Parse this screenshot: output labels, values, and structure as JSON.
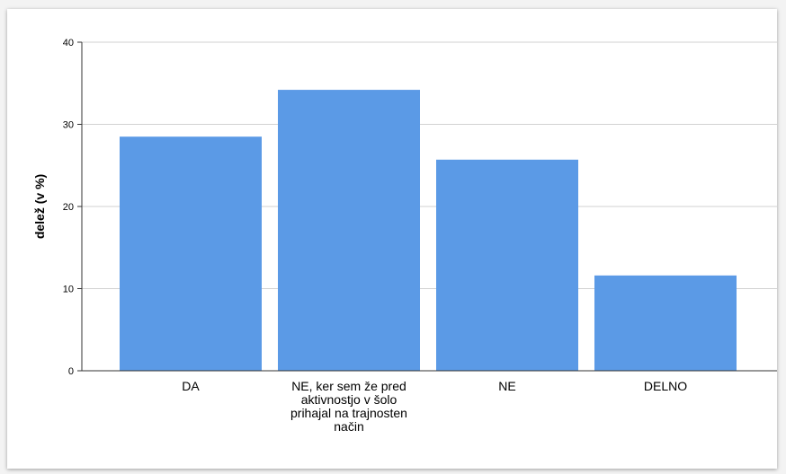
{
  "chart_data": {
    "type": "bar",
    "categories": [
      [
        "DA"
      ],
      [
        "NE, ker sem že pred",
        "aktivnostjo v šolo",
        "prihajal na trajnosten",
        "način"
      ],
      [
        "NE"
      ],
      [
        "DELNO"
      ]
    ],
    "values": [
      28.5,
      34.2,
      25.7,
      11.6
    ],
    "ylabel": "delež (v %)",
    "ylim": [
      0,
      40
    ],
    "yticks": [
      0,
      10,
      20,
      30,
      40
    ],
    "grid": true,
    "colors": {
      "bar": "#5b9ae6",
      "grid": "#d2d2d2",
      "axis": "#333333"
    }
  }
}
